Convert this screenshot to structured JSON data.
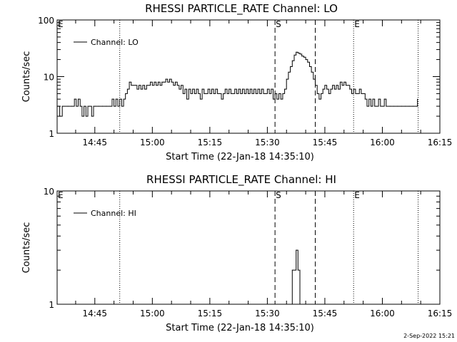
{
  "footer_timestamp": "2-Sep-2022 15:21",
  "chart_data": [
    {
      "type": "line",
      "title": "RHESSI PARTICLE_RATE Channel: LO",
      "xlabel": "Start Time (22-Jan-18 14:35:10)",
      "ylabel": "Counts/sec",
      "yscale": "log",
      "ylim": [
        1,
        100
      ],
      "ytick_labels": [
        "1",
        "10",
        "100"
      ],
      "xlim": [
        "14:35:10",
        "16:15:00"
      ],
      "xtick_labels": [
        "14:45",
        "15:00",
        "15:15",
        "15:30",
        "15:45",
        "16:00",
        "16:15"
      ],
      "grid": false,
      "legend_position": "top-left",
      "series": [
        {
          "name": "Channel: LO",
          "points": [
            [
              "14:35:10",
              3
            ],
            [
              "14:35:50",
              2
            ],
            [
              "14:36:30",
              3
            ],
            [
              "14:38:00",
              3
            ],
            [
              "14:39:00",
              3
            ],
            [
              "14:39:40",
              4
            ],
            [
              "14:40:10",
              3
            ],
            [
              "14:40:40",
              4
            ],
            [
              "14:41:10",
              3
            ],
            [
              "14:41:40",
              2
            ],
            [
              "14:42:10",
              3
            ],
            [
              "14:42:40",
              2
            ],
            [
              "14:43:10",
              3
            ],
            [
              "14:43:40",
              3
            ],
            [
              "14:44:10",
              2
            ],
            [
              "14:44:40",
              3
            ],
            [
              "14:45:10",
              3
            ],
            [
              "14:46:00",
              3
            ],
            [
              "14:47:00",
              3
            ],
            [
              "14:48:00",
              3
            ],
            [
              "14:49:00",
              3
            ],
            [
              "14:49:30",
              4
            ],
            [
              "14:50:00",
              3
            ],
            [
              "14:50:30",
              4
            ],
            [
              "14:51:00",
              3
            ],
            [
              "14:51:30",
              4
            ],
            [
              "14:52:00",
              3
            ],
            [
              "14:52:30",
              4
            ],
            [
              "14:53:00",
              5
            ],
            [
              "14:53:30",
              6
            ],
            [
              "14:54:00",
              8
            ],
            [
              "14:54:30",
              7
            ],
            [
              "14:55:00",
              7
            ],
            [
              "14:55:30",
              7
            ],
            [
              "14:56:00",
              6
            ],
            [
              "14:56:30",
              7
            ],
            [
              "14:57:00",
              6
            ],
            [
              "14:57:30",
              7
            ],
            [
              "14:58:00",
              6
            ],
            [
              "14:58:30",
              7
            ],
            [
              "14:59:00",
              7
            ],
            [
              "14:59:30",
              8
            ],
            [
              "15:00:00",
              7
            ],
            [
              "15:00:30",
              8
            ],
            [
              "15:01:00",
              7
            ],
            [
              "15:01:30",
              8
            ],
            [
              "15:02:00",
              7
            ],
            [
              "15:02:30",
              8
            ],
            [
              "15:03:00",
              8
            ],
            [
              "15:03:30",
              9
            ],
            [
              "15:04:00",
              8
            ],
            [
              "15:04:30",
              9
            ],
            [
              "15:05:00",
              8
            ],
            [
              "15:05:30",
              7
            ],
            [
              "15:06:00",
              8
            ],
            [
              "15:06:30",
              7
            ],
            [
              "15:07:00",
              6
            ],
            [
              "15:07:30",
              7
            ],
            [
              "15:08:00",
              5
            ],
            [
              "15:08:30",
              6
            ],
            [
              "15:09:00",
              4
            ],
            [
              "15:09:30",
              6
            ],
            [
              "15:10:00",
              5
            ],
            [
              "15:10:30",
              6
            ],
            [
              "15:11:00",
              5
            ],
            [
              "15:11:30",
              6
            ],
            [
              "15:12:00",
              5
            ],
            [
              "15:12:30",
              4
            ],
            [
              "15:13:00",
              6
            ],
            [
              "15:13:30",
              5
            ],
            [
              "15:14:00",
              5
            ],
            [
              "15:14:30",
              6
            ],
            [
              "15:15:00",
              5
            ],
            [
              "15:15:30",
              6
            ],
            [
              "15:16:00",
              5
            ],
            [
              "15:16:30",
              6
            ],
            [
              "15:17:00",
              5
            ],
            [
              "15:17:30",
              5
            ],
            [
              "15:18:00",
              4
            ],
            [
              "15:18:30",
              5
            ],
            [
              "15:19:00",
              6
            ],
            [
              "15:19:30",
              5
            ],
            [
              "15:20:00",
              6
            ],
            [
              "15:20:30",
              5
            ],
            [
              "15:21:00",
              5
            ],
            [
              "15:21:30",
              6
            ],
            [
              "15:22:00",
              5
            ],
            [
              "15:22:30",
              6
            ],
            [
              "15:23:00",
              5
            ],
            [
              "15:23:30",
              6
            ],
            [
              "15:24:00",
              5
            ],
            [
              "15:24:30",
              6
            ],
            [
              "15:25:00",
              5
            ],
            [
              "15:25:30",
              6
            ],
            [
              "15:26:00",
              5
            ],
            [
              "15:26:30",
              6
            ],
            [
              "15:27:00",
              5
            ],
            [
              "15:27:30",
              6
            ],
            [
              "15:28:00",
              5
            ],
            [
              "15:28:30",
              6
            ],
            [
              "15:29:00",
              5
            ],
            [
              "15:29:30",
              5
            ],
            [
              "15:30:00",
              6
            ],
            [
              "15:30:30",
              5
            ],
            [
              "15:31:00",
              6
            ],
            [
              "15:31:30",
              4
            ],
            [
              "15:32:00",
              5
            ],
            [
              "15:32:30",
              4
            ],
            [
              "15:33:00",
              5
            ],
            [
              "15:33:30",
              4
            ],
            [
              "15:34:00",
              5
            ],
            [
              "15:34:30",
              6
            ],
            [
              "15:35:00",
              9
            ],
            [
              "15:35:30",
              12
            ],
            [
              "15:36:00",
              15
            ],
            [
              "15:36:30",
              19
            ],
            [
              "15:37:00",
              24
            ],
            [
              "15:37:30",
              27
            ],
            [
              "15:38:00",
              26
            ],
            [
              "15:38:30",
              25
            ],
            [
              "15:39:00",
              23
            ],
            [
              "15:39:30",
              22
            ],
            [
              "15:40:00",
              20
            ],
            [
              "15:40:30",
              18
            ],
            [
              "15:41:00",
              15
            ],
            [
              "15:41:30",
              12
            ],
            [
              "15:42:00",
              9
            ],
            [
              "15:42:30",
              7
            ],
            [
              "15:43:00",
              5
            ],
            [
              "15:43:30",
              4
            ],
            [
              "15:44:00",
              5
            ],
            [
              "15:44:30",
              6
            ],
            [
              "15:45:00",
              7
            ],
            [
              "15:45:30",
              6
            ],
            [
              "15:46:00",
              5
            ],
            [
              "15:46:30",
              6
            ],
            [
              "15:47:00",
              7
            ],
            [
              "15:47:30",
              6
            ],
            [
              "15:48:00",
              7
            ],
            [
              "15:48:30",
              6
            ],
            [
              "15:49:00",
              8
            ],
            [
              "15:49:30",
              7
            ],
            [
              "15:50:00",
              8
            ],
            [
              "15:50:30",
              7
            ],
            [
              "15:51:00",
              7
            ],
            [
              "15:51:30",
              6
            ],
            [
              "15:52:00",
              5
            ],
            [
              "15:52:30",
              6
            ],
            [
              "15:53:00",
              5
            ],
            [
              "15:53:30",
              5
            ],
            [
              "15:54:00",
              6
            ],
            [
              "15:54:30",
              5
            ],
            [
              "15:55:00",
              5
            ],
            [
              "15:55:30",
              4
            ],
            [
              "15:56:00",
              3
            ],
            [
              "15:56:30",
              4
            ],
            [
              "15:57:00",
              3
            ],
            [
              "15:57:30",
              4
            ],
            [
              "15:58:00",
              3
            ],
            [
              "15:58:30",
              3
            ],
            [
              "15:59:00",
              4
            ],
            [
              "15:59:30",
              3
            ],
            [
              "16:00:00",
              3
            ],
            [
              "16:00:30",
              4
            ],
            [
              "16:01:00",
              3
            ],
            [
              "16:02:00",
              3
            ],
            [
              "16:03:00",
              3
            ],
            [
              "16:04:00",
              3
            ],
            [
              "16:05:00",
              3
            ],
            [
              "16:06:00",
              3
            ],
            [
              "16:07:00",
              3
            ],
            [
              "16:08:00",
              3
            ],
            [
              "16:09:00",
              3
            ],
            [
              "16:09:10",
              4
            ]
          ]
        }
      ],
      "vertical_lines": [
        {
          "time": "14:35:10",
          "style": "dotted",
          "label": "E"
        },
        {
          "time": "14:51:30",
          "style": "dotted",
          "label": ""
        },
        {
          "time": "15:32:00",
          "style": "dashed",
          "label": "S"
        },
        {
          "time": "15:42:30",
          "style": "dashed",
          "label": ""
        },
        {
          "time": "15:52:30",
          "style": "dotted",
          "label": "E"
        },
        {
          "time": "16:09:20",
          "style": "dotted",
          "label": ""
        }
      ]
    },
    {
      "type": "line",
      "title": "RHESSI PARTICLE_RATE Channel: HI",
      "xlabel": "Start Time (22-Jan-18 14:35:10)",
      "ylabel": "Counts/sec",
      "yscale": "log",
      "ylim": [
        1,
        10
      ],
      "ytick_labels": [
        "1",
        "10"
      ],
      "xlim": [
        "14:35:10",
        "16:15:00"
      ],
      "xtick_labels": [
        "14:45",
        "15:00",
        "15:15",
        "15:30",
        "15:45",
        "16:00",
        "16:15"
      ],
      "grid": false,
      "legend_position": "top-left",
      "series": [
        {
          "name": "Channel: HI",
          "points": [
            [
              "15:35:30",
              1
            ],
            [
              "15:36:00",
              1
            ],
            [
              "15:36:30",
              2
            ],
            [
              "15:37:00",
              2
            ],
            [
              "15:37:30",
              3
            ],
            [
              "15:38:00",
              2
            ],
            [
              "15:38:30",
              1
            ],
            [
              "15:39:00",
              1
            ]
          ]
        }
      ],
      "vertical_lines": [
        {
          "time": "14:35:10",
          "style": "dotted",
          "label": "E"
        },
        {
          "time": "14:51:30",
          "style": "dotted",
          "label": ""
        },
        {
          "time": "15:32:00",
          "style": "dashed",
          "label": "S"
        },
        {
          "time": "15:42:30",
          "style": "dashed",
          "label": ""
        },
        {
          "time": "15:52:30",
          "style": "dotted",
          "label": "E"
        },
        {
          "time": "16:09:20",
          "style": "dotted",
          "label": ""
        }
      ]
    }
  ]
}
